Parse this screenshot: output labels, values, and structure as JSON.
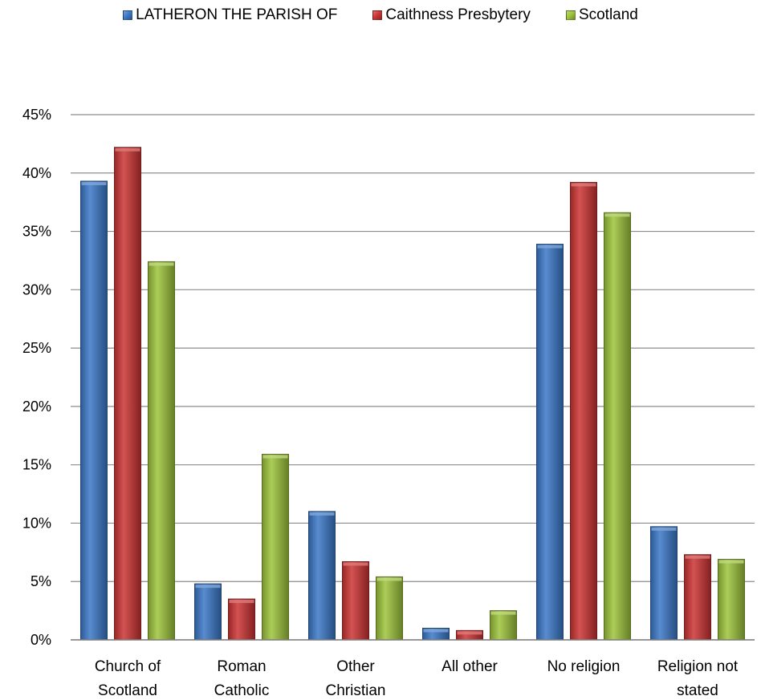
{
  "chart_data": {
    "type": "bar",
    "categories": [
      [
        "Church of",
        "Scotland"
      ],
      [
        "Roman",
        "Catholic"
      ],
      [
        "Other",
        "Christian"
      ],
      [
        "All other"
      ],
      [
        "No religion"
      ],
      [
        "Religion not",
        "stated"
      ]
    ],
    "series": [
      {
        "name": "LATHERON THE PARISH OF",
        "color": "#3b78c8",
        "values": [
          39.3,
          4.8,
          11.0,
          1.0,
          33.9,
          9.7
        ]
      },
      {
        "name": "Caithness Presbytery",
        "color": "#cc3333",
        "values": [
          42.2,
          3.5,
          6.7,
          0.8,
          39.2,
          7.3
        ]
      },
      {
        "name": "Scotland",
        "color": "#9dc43a",
        "values": [
          32.4,
          15.9,
          5.4,
          2.5,
          36.6,
          6.9
        ]
      }
    ],
    "ylim": [
      0,
      45
    ],
    "yticks": [
      "0%",
      "5%",
      "10%",
      "15%",
      "20%",
      "25%",
      "30%",
      "35%",
      "40%",
      "45%"
    ],
    "grid": true,
    "legend_position": "top-center"
  }
}
